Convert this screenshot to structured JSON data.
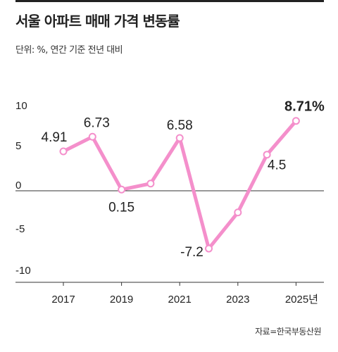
{
  "header": {
    "title": "서울 아파트 매매 가격 변동률",
    "unit": "단위: %, 연간 기준 전년 대비"
  },
  "source": "자료=한국부동산원",
  "chart_data": {
    "type": "line",
    "title": "서울 아파트 매매 가격 변동률",
    "subtitle": "단위: %, 연간 기준 전년 대비",
    "x": [
      2017,
      2018,
      2019,
      2020,
      2021,
      2022,
      2023,
      2024,
      2025
    ],
    "series": [
      {
        "values": [
          4.91,
          6.73,
          0.15,
          0.9,
          6.58,
          -7.2,
          -2.7,
          4.5,
          8.71
        ]
      }
    ],
    "data_labels": [
      "4.91",
      "6.73",
      "0.15",
      "",
      "6.58",
      "-7.2",
      "",
      "4.5",
      "8.71%"
    ],
    "x_ticks": [
      "2017",
      "2019",
      "2021",
      "2023",
      "2025년"
    ],
    "y_ticks": [
      "10",
      "5",
      "0",
      "-5",
      "-10"
    ],
    "y_tick_values": [
      10,
      5,
      0,
      -5,
      -10
    ],
    "ylim": [
      -10,
      10
    ],
    "line_color": "#f48fcb",
    "grid": false
  }
}
